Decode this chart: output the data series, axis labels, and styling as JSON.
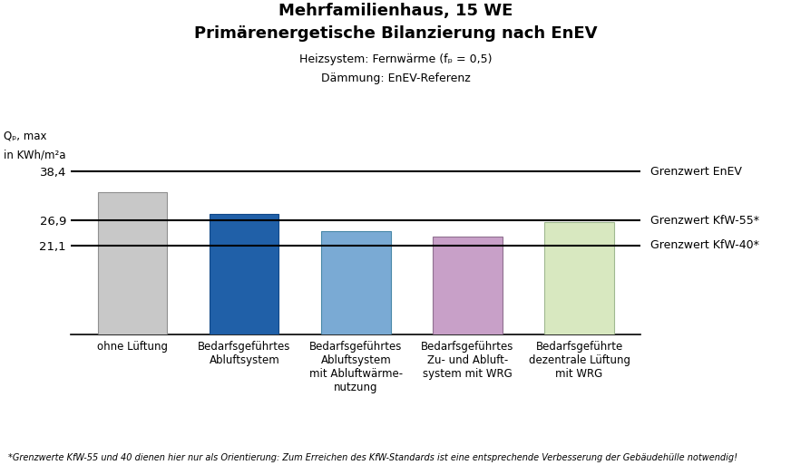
{
  "title_line1": "Mehrfamilienhaus, 15 WE",
  "title_line2": "Primärenergetische Bilanzierung nach EnEV",
  "subtitle_line1": "Heizsystem: Fernwärme (fₚ = 0,5)",
  "subtitle_line2": "Dämmung: EnEV-Referenz",
  "ylabel_top": "Qₚ, max",
  "ylabel_bottom": "in KWh/m²a",
  "footnote": "*Grenzwerte KfW-55 und 40 dienen hier nur als Orientierung: Zum Erreichen des KfW-Standards ist eine entsprechende Verbesserung der Gebäudehülle notwendig!",
  "categories": [
    "ohne Lüftung",
    "Bedarfsgeführtes\nAbluftsystem",
    "Bedarfsgeführtes\nAbluftsystem\nmit Abluftwärme-\nnutzung",
    "Bedarfsgeführtes\nZu- und Abluft-\nsystem mit WRG",
    "Bedarfsgeführte\ndezentrale Lüftung\nmit WRG"
  ],
  "values": [
    33.5,
    28.5,
    24.5,
    23.2,
    26.5
  ],
  "bar_colors": [
    "#c8c8c8",
    "#2060a8",
    "#7aaad4",
    "#c8a0c8",
    "#d8e8c0"
  ],
  "bar_edgecolors": [
    "#909090",
    "#104888",
    "#4888a8",
    "#907090",
    "#a0b890"
  ],
  "hlines": [
    {
      "y": 38.4,
      "label": "Grenzwert EnEV",
      "color": "#000000"
    },
    {
      "y": 26.9,
      "label": "Grenzwert KfW-55*",
      "color": "#000000"
    },
    {
      "y": 21.1,
      "label": "Grenzwert KfW-40*",
      "color": "#000000"
    }
  ],
  "ytick_values": [
    38.4,
    26.9,
    21.1
  ],
  "ytick_labels": [
    "38,4",
    "26,9",
    "21,1"
  ],
  "ylim": [
    0,
    46
  ],
  "background_color": "#ffffff",
  "title_fontsize": 13,
  "subtitle_fontsize": 9,
  "tick_fontsize": 9.5,
  "annotation_fontsize": 9,
  "footnote_fontsize": 7,
  "xlabel_fontsize": 8.5
}
